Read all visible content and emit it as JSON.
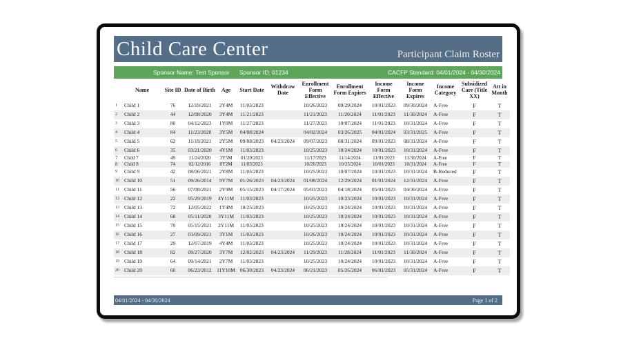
{
  "header": {
    "title": "Child Care Center",
    "report_title": "Participant Claim Roster"
  },
  "sponsor_bar": {
    "sponsor_name": "Sponsor Name: Test Sponsor",
    "sponsor_id": "Sponsor ID: 01234",
    "standard": "CACFP Standard: 04/01/2024 - 04/30/2024"
  },
  "table": {
    "columns": [
      "",
      "Name",
      "Site ID",
      "Date of Birth",
      "Age",
      "Start Date",
      "Withdraw Date",
      "Enrollment Form Effective",
      "Enrollment Form Expires",
      "Income Form Effective",
      "Income Form Expires",
      "Income Category",
      "Subsidized Care (Title XX)",
      "Att in Month"
    ],
    "rows": [
      [
        "1",
        "Child 1",
        "76",
        "12/19/2021",
        "2Y4M",
        "11/03/2023",
        "",
        "10/26/2023",
        "09/29/2024",
        "10/01/2023",
        "09/30/2024",
        "A-Free",
        "F",
        "T"
      ],
      [
        "2",
        "Child 2",
        "44",
        "12/08/2020",
        "3Y4M",
        "11/21/2023",
        "",
        "11/21/2023",
        "11/20/2024",
        "11/01/2023",
        "11/30/2024",
        "A-Free",
        "F",
        "T"
      ],
      [
        "3",
        "Child 3",
        "80",
        "04/12/2023",
        "1Y0M",
        "11/27/2023",
        "",
        "11/27/2023",
        "10/07/2024",
        "11/01/2023",
        "10/31/2024",
        "A-Free",
        "F",
        "T"
      ],
      [
        "4",
        "Child 4",
        "84",
        "11/23/2020",
        "3Y5M",
        "04/08/2024",
        "",
        "04/02/2024",
        "03/26/2025",
        "04/01/2024",
        "03/31/2025",
        "A-Free",
        "F",
        "T"
      ],
      [
        "5",
        "Child 5",
        "62",
        "11/19/2021",
        "2Y5M",
        "09/08/2023",
        "04/23/2024",
        "09/07/2023",
        "08/31/2024",
        "09/01/2023",
        "08/31/2024",
        "A-Free",
        "F",
        "T"
      ],
      [
        "6",
        "Child 6",
        "35",
        "03/21/2020",
        "4Y1M",
        "11/03/2023",
        "",
        "10/25/2023",
        "10/24/2024",
        "10/01/2023",
        "10/31/2024",
        "A-Free",
        "F",
        "T"
      ],
      [
        "7",
        "Child 7",
        "49",
        "11/24/2020",
        "3Y5M",
        "01/20/2023",
        "",
        "11/17/2023",
        "11/14/2024",
        "11/01/2023",
        "11/30/2024",
        "A-Free",
        "F",
        "T"
      ],
      [
        "8",
        "Child 8",
        "74",
        "02/12/2016",
        "8Y2M",
        "11/03/2023",
        "",
        "10/26/2023",
        "10/25/2024",
        "10/01/2023",
        "10/31/2024",
        "A-Free",
        "F",
        "T"
      ],
      [
        "9",
        "Child 9",
        "42",
        "08/06/2021",
        "2Y8M",
        "11/03/2023",
        "",
        "10/25/2023",
        "10/07/2024",
        "10/01/2023",
        "10/31/2024",
        "B-Reduced",
        "F",
        "T"
      ],
      [
        "10",
        "Child 10",
        "51",
        "09/26/2014",
        "9Y7M",
        "01/26/2023",
        "04/23/2024",
        "01/08/2024",
        "12/29/2024",
        "01/01/2024",
        "12/31/2024",
        "A-Free",
        "F",
        "T"
      ],
      [
        "11",
        "Child 11",
        "56",
        "07/08/2021",
        "2Y9M",
        "05/15/2023",
        "04/17/2024",
        "05/03/2023",
        "04/18/2024",
        "05/01/2023",
        "04/30/2024",
        "A-Free",
        "F",
        "T"
      ],
      [
        "12",
        "Child 12",
        "22",
        "05/29/2019",
        "4Y11M",
        "11/03/2023",
        "",
        "10/25/2023",
        "10/23/2024",
        "10/01/2023",
        "10/31/2024",
        "A-Free",
        "F",
        "T"
      ],
      [
        "13",
        "Child 13",
        "72",
        "12/05/2022",
        "1Y4M",
        "10/25/2023",
        "",
        "10/25/2023",
        "10/24/2024",
        "10/01/2023",
        "10/31/2024",
        "A-Free",
        "F",
        "T"
      ],
      [
        "14",
        "Child 14",
        "68",
        "05/11/2020",
        "3Y11M",
        "11/03/2023",
        "",
        "10/25/2023",
        "10/24/2024",
        "10/01/2023",
        "10/31/2024",
        "A-Free",
        "F",
        "T"
      ],
      [
        "15",
        "Child 15",
        "70",
        "05/15/2021",
        "2Y11M",
        "11/03/2023",
        "",
        "10/25/2023",
        "10/24/2024",
        "10/01/2023",
        "10/31/2024",
        "A-Free",
        "F",
        "T"
      ],
      [
        "16",
        "Child 16",
        "27",
        "03/09/2021",
        "3Y1M",
        "11/03/2023",
        "",
        "10/26/2023",
        "10/24/2024",
        "10/01/2023",
        "10/31/2024",
        "A-Free",
        "F",
        "T"
      ],
      [
        "17",
        "Child 17",
        "29",
        "12/07/2019",
        "4Y4M",
        "11/03/2023",
        "",
        "10/25/2023",
        "10/24/2024",
        "10/01/2023",
        "10/31/2024",
        "A-Free",
        "F",
        "T"
      ],
      [
        "18",
        "Child 18",
        "82",
        "09/27/2020",
        "3Y7M",
        "12/02/2023",
        "04/23/2024",
        "11/29/2023",
        "11/28/2024",
        "11/01/2023",
        "11/30/2024",
        "A-Free",
        "F",
        "T"
      ],
      [
        "19",
        "Child 19",
        "64",
        "09/14/2021",
        "2Y7M",
        "11/03/2023",
        "",
        "10/25/2023",
        "10/24/2024",
        "10/01/2023",
        "10/31/2024",
        "A-Free",
        "F",
        "T"
      ],
      [
        "20",
        "Child 20",
        "60",
        "06/23/2012",
        "11Y10M",
        "06/30/2023",
        "04/23/2024",
        "06/21/2023",
        "05/26/2024",
        "06/01/2023",
        "05/31/2024",
        "A-Free",
        "F",
        "T"
      ]
    ]
  },
  "footer": {
    "date_range": "04/01/2024 - 04/30/2024",
    "page": "Page 1 of 2"
  },
  "colors": {
    "band": "#546E88",
    "green": "#5CA65A",
    "stripe": "#EDEDED"
  }
}
